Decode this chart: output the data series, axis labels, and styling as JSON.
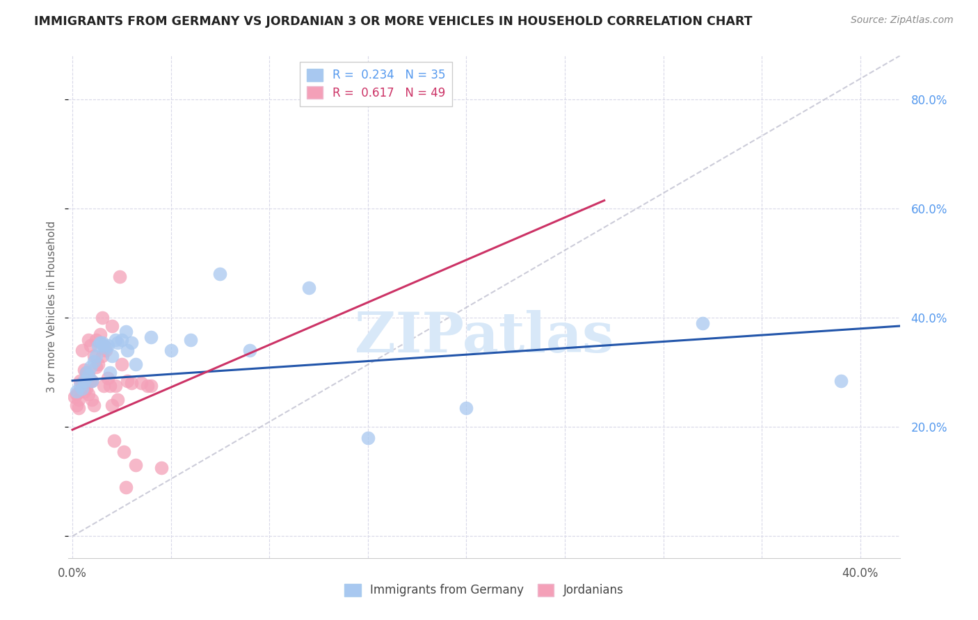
{
  "title": "IMMIGRANTS FROM GERMANY VS JORDANIAN 3 OR MORE VEHICLES IN HOUSEHOLD CORRELATION CHART",
  "source": "Source: ZipAtlas.com",
  "ylabel": "3 or more Vehicles in Household",
  "legend_label_blue": "Immigrants from Germany",
  "legend_label_pink": "Jordanians",
  "xlim": [
    -0.002,
    0.42
  ],
  "ylim": [
    -0.04,
    0.88
  ],
  "blue_R": 0.234,
  "blue_N": 35,
  "pink_R": 0.617,
  "pink_N": 49,
  "blue_color": "#a8c8f0",
  "pink_color": "#f4a0b8",
  "blue_line_color": "#2255aa",
  "pink_line_color": "#cc3366",
  "diag_color": "#c0c0d0",
  "watermark": "ZIPatlas",
  "watermark_color": "#d8e8f8",
  "blue_scatter_x": [
    0.002,
    0.004,
    0.005,
    0.006,
    0.007,
    0.008,
    0.009,
    0.01,
    0.011,
    0.012,
    0.013,
    0.014,
    0.015,
    0.016,
    0.017,
    0.018,
    0.019,
    0.02,
    0.022,
    0.023,
    0.025,
    0.027,
    0.028,
    0.03,
    0.032,
    0.04,
    0.05,
    0.06,
    0.075,
    0.09,
    0.12,
    0.15,
    0.2,
    0.32,
    0.39
  ],
  "blue_scatter_y": [
    0.265,
    0.275,
    0.27,
    0.285,
    0.3,
    0.295,
    0.31,
    0.285,
    0.32,
    0.33,
    0.35,
    0.355,
    0.355,
    0.35,
    0.345,
    0.35,
    0.3,
    0.33,
    0.36,
    0.355,
    0.36,
    0.375,
    0.34,
    0.355,
    0.315,
    0.365,
    0.34,
    0.36,
    0.48,
    0.34,
    0.455,
    0.18,
    0.235,
    0.39,
    0.285
  ],
  "pink_scatter_x": [
    0.001,
    0.002,
    0.002,
    0.003,
    0.003,
    0.004,
    0.004,
    0.005,
    0.005,
    0.006,
    0.006,
    0.007,
    0.007,
    0.008,
    0.008,
    0.008,
    0.009,
    0.009,
    0.01,
    0.01,
    0.011,
    0.011,
    0.012,
    0.012,
    0.013,
    0.014,
    0.015,
    0.015,
    0.016,
    0.016,
    0.017,
    0.018,
    0.019,
    0.02,
    0.02,
    0.021,
    0.022,
    0.023,
    0.024,
    0.025,
    0.026,
    0.027,
    0.028,
    0.03,
    0.032,
    0.035,
    0.038,
    0.04,
    0.045
  ],
  "pink_scatter_y": [
    0.255,
    0.26,
    0.24,
    0.235,
    0.25,
    0.265,
    0.285,
    0.28,
    0.34,
    0.265,
    0.305,
    0.27,
    0.3,
    0.26,
    0.295,
    0.36,
    0.285,
    0.35,
    0.25,
    0.285,
    0.33,
    0.24,
    0.31,
    0.36,
    0.315,
    0.37,
    0.33,
    0.4,
    0.35,
    0.275,
    0.34,
    0.29,
    0.275,
    0.24,
    0.385,
    0.175,
    0.275,
    0.25,
    0.475,
    0.315,
    0.155,
    0.09,
    0.285,
    0.28,
    0.13,
    0.28,
    0.275,
    0.275,
    0.125
  ],
  "blue_line_x0": 0.0,
  "blue_line_y0": 0.285,
  "blue_line_x1": 0.42,
  "blue_line_y1": 0.385,
  "pink_line_x0": 0.0,
  "pink_line_y0": 0.195,
  "pink_line_x1": 0.27,
  "pink_line_y1": 0.615
}
